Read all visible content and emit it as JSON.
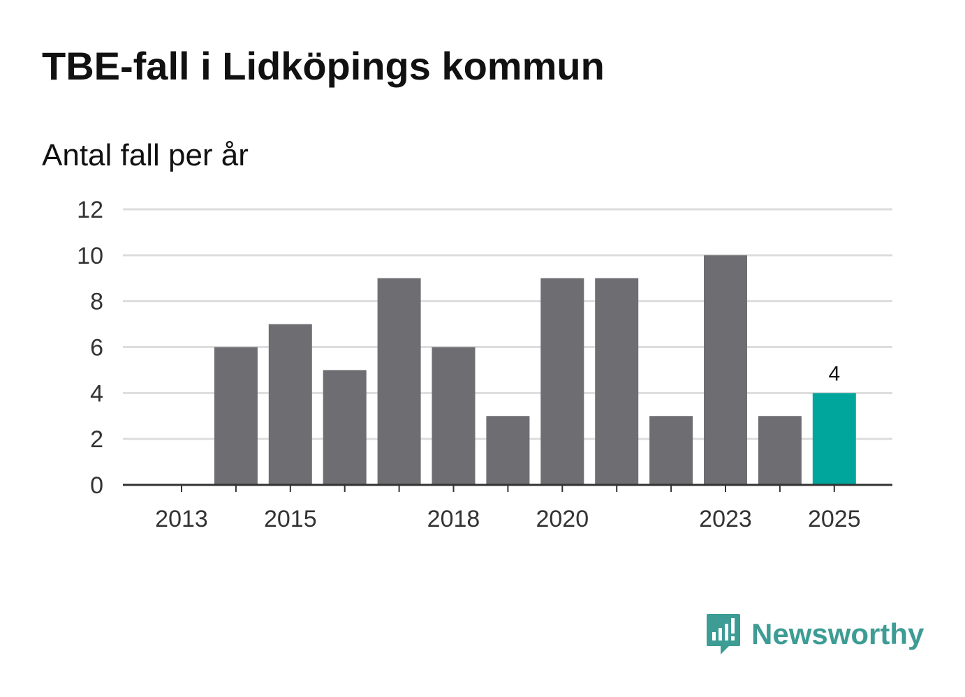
{
  "title": "TBE-fall i Lidköpings kommun",
  "subtitle": "Antal fall per år",
  "brand": {
    "name": "Newsworthy",
    "icon": "newsworthy-logo-icon",
    "color": "#3d9c94"
  },
  "chart_data": {
    "type": "bar",
    "title": "TBE-fall i Lidköpings kommun",
    "ylabel": "Antal fall per år",
    "xlabel": "",
    "categories": [
      "2013",
      "2014",
      "2015",
      "2016",
      "2017",
      "2018",
      "2019",
      "2020",
      "2021",
      "2022",
      "2023",
      "2024",
      "2025"
    ],
    "values": [
      0,
      6,
      7,
      5,
      9,
      6,
      3,
      9,
      9,
      3,
      10,
      3,
      4
    ],
    "ylim": [
      0,
      12
    ],
    "yticks": [
      "0",
      "2",
      "4",
      "6",
      "8",
      "10",
      "12"
    ],
    "xtick_labels": [
      "2013",
      "2015",
      "2018",
      "2020",
      "2023",
      "2025"
    ],
    "grid": true,
    "bar_color": "#6e6d72",
    "highlight_color": "#00a59b",
    "highlight_category": "2025",
    "data_labels": [
      {
        "category": "2025",
        "text": "4"
      }
    ]
  }
}
